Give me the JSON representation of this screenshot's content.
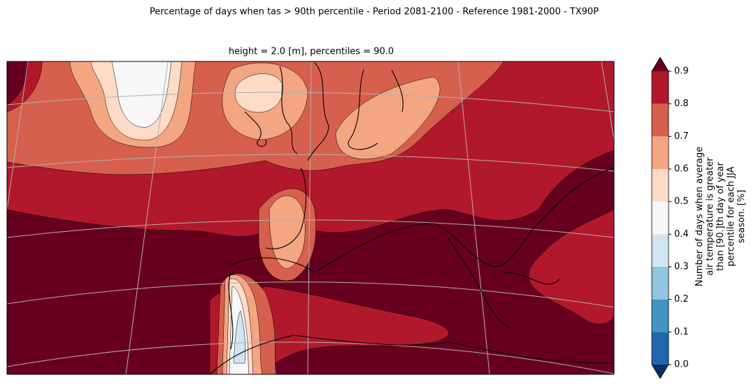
{
  "figure": {
    "title": "Percentage of days when tas > 90th percentile - Period 2081-2100 - Reference 1981-2000 - TX90P",
    "subtitle": "height = 2.0 [m], percentiles = 90.0",
    "colorbar": {
      "ticks": [
        {
          "value": 0,
          "label": "0.0"
        },
        {
          "value": 0.1,
          "label": "0.1"
        },
        {
          "value": 0.2,
          "label": "0.2"
        },
        {
          "value": 0.3,
          "label": "0.3"
        },
        {
          "value": 0.4,
          "label": "0.4"
        },
        {
          "value": 0.5,
          "label": "0.5"
        },
        {
          "value": 0.6,
          "label": "0.6"
        },
        {
          "value": 0.7,
          "label": "0.7"
        },
        {
          "value": 0.8,
          "label": "0.8"
        },
        {
          "value": 0.9,
          "label": "0.9"
        }
      ],
      "colors": [
        "#2166ac",
        "#4393c3",
        "#92c5de",
        "#d1e5f0",
        "#f7f7f7",
        "#fddbc7",
        "#f4a582",
        "#d6604d",
        "#b2182b"
      ],
      "under_color": "#053061",
      "over_color": "#67001f",
      "label_lines": [
        "Number of days when average",
        "air temperature is greater",
        "than [90.]th day of year",
        "percentile for each JJA",
        "season. [%]"
      ]
    }
  }
}
